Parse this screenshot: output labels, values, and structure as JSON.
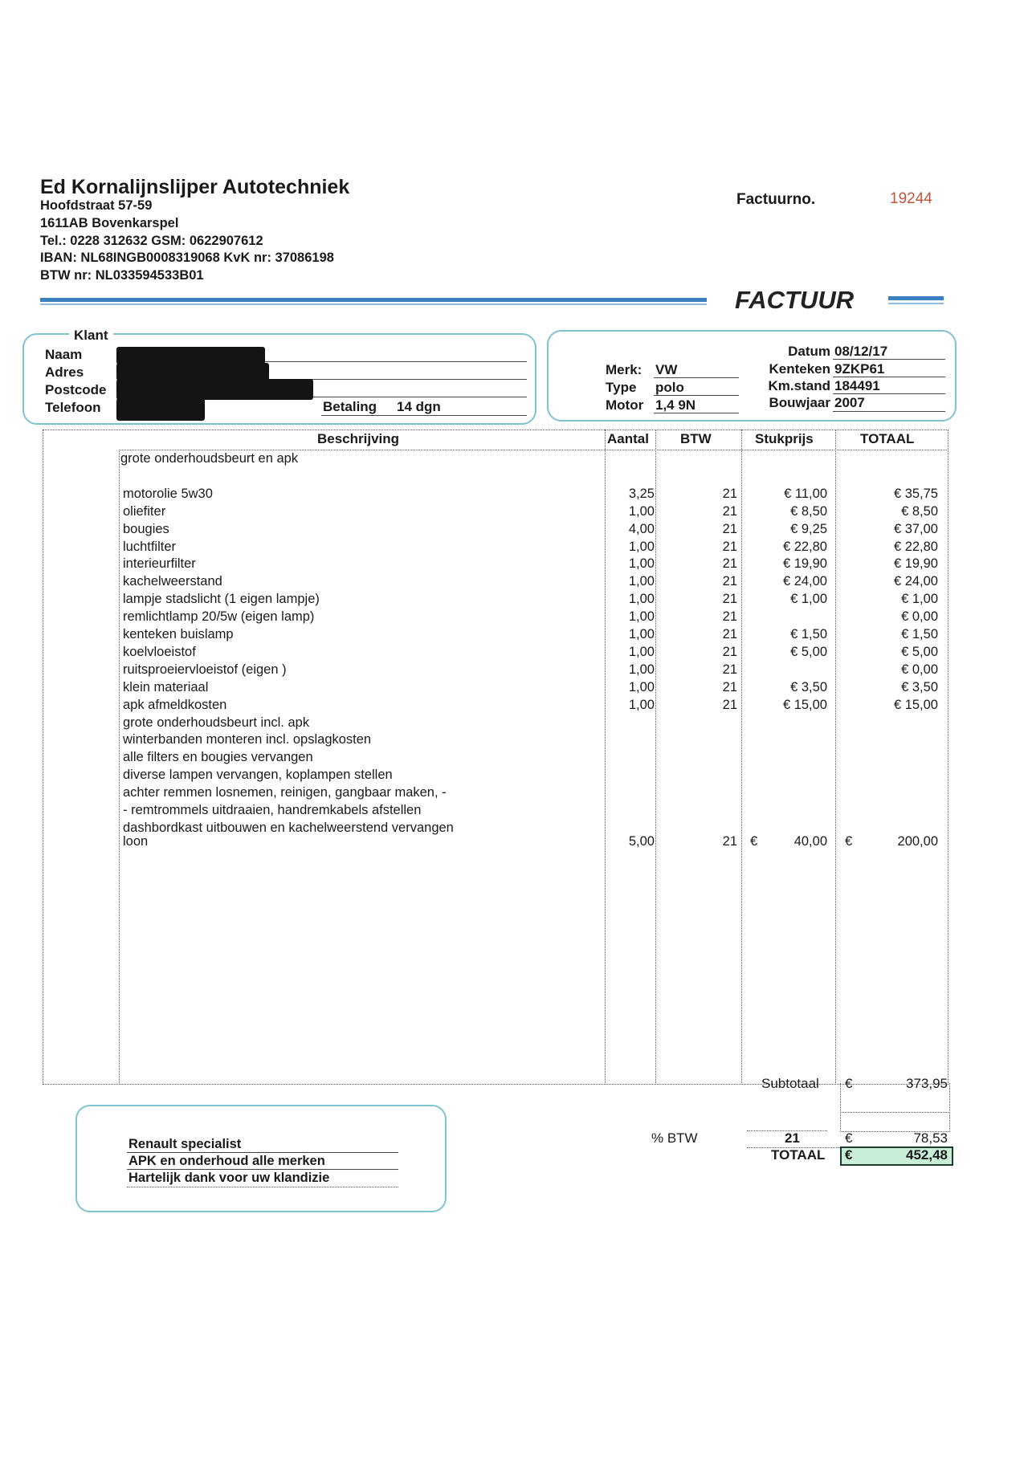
{
  "company": {
    "name": "Ed Kornalijnslijper Autotechniek",
    "lines": [
      "Hoofdstraat 57-59",
      "1611AB  Bovenkarspel",
      "Tel.: 0228 312632  GSM: 0622907612",
      "IBAN: NL68INGB0008319068   KvK nr: 37086198",
      "BTW nr: NL033594533B01"
    ]
  },
  "invoice": {
    "number_label": "Factuurno.",
    "number": "19244",
    "title": "FACTUUR"
  },
  "colors": {
    "accent_blue": "#3a7fc0",
    "box_border": "#7ec3cf",
    "invoice_number": "#c0553a",
    "total_highlight": "#c9eed8"
  },
  "customer": {
    "legend": "Klant",
    "labels": [
      "Naam",
      "Adres",
      "Postcode",
      "Telefoon"
    ],
    "payment_label": "Betaling",
    "payment_value": "14 dgn"
  },
  "vehicle": {
    "merk_label": "Merk:",
    "merk": "VW",
    "type_label": "Type",
    "type": "polo",
    "motor_label": "Motor",
    "motor": "1,4 9N",
    "datum_label": "Datum",
    "datum": "08/12/17",
    "kenteken_label": "Kenteken",
    "kenteken": "9ZKP61",
    "kmstand_label": "Km.stand",
    "kmstand": "184491",
    "bouwjaar_label": "Bouwjaar",
    "bouwjaar": "2007"
  },
  "table": {
    "headers": {
      "beschrijving": "Beschrijving",
      "aantal": "Aantal",
      "btw": "BTW",
      "stukprijs": "Stukprijs",
      "totaal": "TOTAAL"
    },
    "rows": [
      {
        "desc": "grote onderhoudsbeurt en apk"
      },
      {
        "desc": ""
      },
      {
        "desc": "motorolie 5w30",
        "aantal": "3,25",
        "btw": "21",
        "stukprijs": "€ 11,00",
        "totaal": "€ 35,75"
      },
      {
        "desc": "oliefiter",
        "aantal": "1,00",
        "btw": "21",
        "stukprijs": "€ 8,50",
        "totaal": "€ 8,50"
      },
      {
        "desc": "bougies",
        "aantal": "4,00",
        "btw": "21",
        "stukprijs": "€ 9,25",
        "totaal": "€ 37,00"
      },
      {
        "desc": "luchtfilter",
        "aantal": "1,00",
        "btw": "21",
        "stukprijs": "€ 22,80",
        "totaal": "€ 22,80"
      },
      {
        "desc": "interieurfilter",
        "aantal": "1,00",
        "btw": "21",
        "stukprijs": "€ 19,90",
        "totaal": "€ 19,90"
      },
      {
        "desc": "kachelweerstand",
        "aantal": "1,00",
        "btw": "21",
        "stukprijs": "€ 24,00",
        "totaal": "€ 24,00"
      },
      {
        "desc": "lampje stadslicht (1 eigen lampje)",
        "aantal": "1,00",
        "btw": "21",
        "stukprijs": "€ 1,00",
        "totaal": "€ 1,00"
      },
      {
        "desc": "remlichtlamp 20/5w  (eigen lamp)",
        "aantal": "1,00",
        "btw": "21",
        "totaal": "€ 0,00"
      },
      {
        "desc": "kenteken buislamp",
        "aantal": "1,00",
        "btw": "21",
        "stukprijs": "€ 1,50",
        "totaal": "€ 1,50"
      },
      {
        "desc": "koelvloeistof",
        "aantal": "1,00",
        "btw": "21",
        "stukprijs": "€ 5,00",
        "totaal": "€ 5,00"
      },
      {
        "desc": "ruitsproeiervloeistof (eigen )",
        "aantal": "1,00",
        "btw": "21",
        "totaal": "€ 0,00"
      },
      {
        "desc": "klein materiaal",
        "aantal": "1,00",
        "btw": "21",
        "stukprijs": "€ 3,50",
        "totaal": "€ 3,50"
      },
      {
        "desc": "apk afmeldkosten",
        "aantal": "1,00",
        "btw": "21",
        "stukprijs": "€ 15,00",
        "totaal": "€ 15,00"
      },
      {
        "desc": "grote onderhoudsbeurt incl. apk"
      },
      {
        "desc": "winterbanden monteren incl. opslagkosten"
      },
      {
        "desc": "alle filters en bougies vervangen"
      },
      {
        "desc": "diverse lampen vervangen, koplampen stellen"
      },
      {
        "desc": "achter remmen losnemen, reinigen, gangbaar maken, -"
      },
      {
        "desc": "-   remtrommels uitdraaien, handremkabels afstellen"
      },
      {
        "desc": "dashbordkast uitbouwen en kachelweerstend vervangen"
      },
      {
        "desc": "loon",
        "aantal": "5,00",
        "btw": "21",
        "stukprijs_cur": "€",
        "stukprijs": "40,00",
        "totaal_cur": "€",
        "totaal": "200,00"
      }
    ]
  },
  "totals": {
    "subtotal_label": "Subtotaal",
    "subtotal_cur": "€",
    "subtotal": "373,95",
    "vat_label": "% BTW",
    "vat_rate": "21",
    "vat_cur": "€",
    "vat": "78,53",
    "total_label": "TOTAAL",
    "total_cur": "€",
    "total": "452,48"
  },
  "footer": [
    "Renault specialist",
    "APK en onderhoud alle merken",
    "Hartelijk dank voor uw klandizie"
  ]
}
